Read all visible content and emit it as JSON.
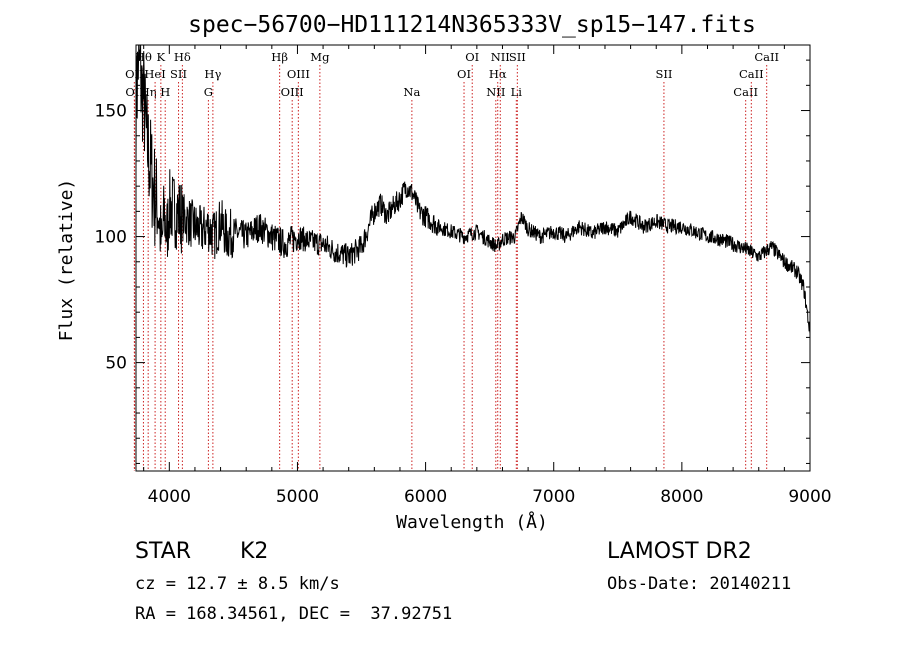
{
  "chart_data": {
    "type": "line",
    "title": "spec−56700−HD111214N365333V_sp15−147.fits",
    "xlabel": "Wavelength (Å)",
    "ylabel": "Flux (relative)",
    "xlim": [
      3740,
      9000
    ],
    "ylim": [
      7,
      176
    ],
    "xticks": [
      4000,
      5000,
      6000,
      7000,
      8000,
      9000
    ],
    "yticks": [
      50,
      100,
      150
    ],
    "grid": false,
    "line_color": "#000000",
    "marker_color": "#cc2222",
    "series": [
      {
        "x": [
          3740,
          3760,
          3780,
          3800,
          3820,
          3840,
          3860,
          3880,
          3900,
          3920,
          3940,
          3960,
          3980,
          4000,
          4050,
          4100,
          4150,
          4200,
          4250,
          4300,
          4350,
          4400,
          4450,
          4500,
          4600,
          4700,
          4800,
          4900,
          5000,
          5100,
          5200,
          5300,
          5400,
          5500,
          5600,
          5650,
          5700,
          5750,
          5800,
          5850,
          5900,
          5950,
          6000,
          6100,
          6200,
          6300,
          6400,
          6500,
          6560,
          6600,
          6700,
          6750,
          6800,
          6900,
          7000,
          7100,
          7200,
          7300,
          7400,
          7500,
          7600,
          7700,
          7800,
          7900,
          8000,
          8100,
          8200,
          8300,
          8400,
          8500,
          8600,
          8700,
          8800,
          8900,
          8950,
          9000
        ],
        "y": [
          150,
          172,
          160,
          155,
          140,
          132,
          125,
          118,
          112,
          108,
          95,
          110,
          100,
          112,
          110,
          108,
          106,
          104,
          102,
          104,
          100,
          106,
          100,
          102,
          100,
          104,
          100,
          97,
          100,
          98,
          97,
          94,
          92,
          96,
          110,
          113,
          108,
          112,
          115,
          120,
          117,
          110,
          108,
          104,
          102,
          100,
          102,
          98,
          96,
          99,
          100,
          108,
          103,
          100,
          102,
          100,
          104,
          101,
          104,
          102,
          108,
          104,
          106,
          104,
          104,
          102,
          100,
          99,
          97,
          95,
          92,
          96,
          90,
          86,
          80,
          62
        ]
      }
    ],
    "lines": [
      {
        "name": "OII",
        "x": 3727,
        "row": 2
      },
      {
        "name": "OII",
        "x": 3729,
        "row": 3
      },
      {
        "name": "Hθ",
        "x": 3798,
        "row": 1
      },
      {
        "name": "Hη",
        "x": 3835,
        "row": 3
      },
      {
        "name": "HeI",
        "x": 3889,
        "row": 2
      },
      {
        "name": "K",
        "x": 3934,
        "row": 1
      },
      {
        "name": "H",
        "x": 3968,
        "row": 3
      },
      {
        "name": "SII",
        "x": 4072,
        "row": 2
      },
      {
        "name": "Hδ",
        "x": 4102,
        "row": 1
      },
      {
        "name": "G",
        "x": 4305,
        "row": 3
      },
      {
        "name": "Hγ",
        "x": 4340,
        "row": 2
      },
      {
        "name": "Hβ",
        "x": 4861,
        "row": 1
      },
      {
        "name": "OIII",
        "x": 4959,
        "row": 3
      },
      {
        "name": "OIII",
        "x": 5007,
        "row": 2
      },
      {
        "name": "Mg",
        "x": 5175,
        "row": 1
      },
      {
        "name": "Na",
        "x": 5893,
        "row": 3
      },
      {
        "name": "OI",
        "x": 6300,
        "row": 2
      },
      {
        "name": "OI",
        "x": 6364,
        "row": 1
      },
      {
        "name": "NII",
        "x": 6548,
        "row": 3
      },
      {
        "name": "Hα",
        "x": 6563,
        "row": 2
      },
      {
        "name": "NII",
        "x": 6583,
        "row": 1
      },
      {
        "name": "Li",
        "x": 6708,
        "row": 3
      },
      {
        "name": "SII",
        "x": 6716,
        "row": 1
      },
      {
        "name": "SII",
        "x": 7860,
        "row": 2
      },
      {
        "name": "CaII",
        "x": 8498,
        "row": 3
      },
      {
        "name": "CaII",
        "x": 8542,
        "row": 2
      },
      {
        "name": "CaII",
        "x": 8662,
        "row": 1
      }
    ]
  },
  "info": {
    "class": "STAR",
    "subclass": "K2",
    "survey": "LAMOST DR2",
    "redshift": "cz = 12.7 ± 8.5 km/s",
    "obs_date": "Obs-Date: 20140211",
    "coords": "RA = 168.34561, DEC =  37.92751"
  }
}
